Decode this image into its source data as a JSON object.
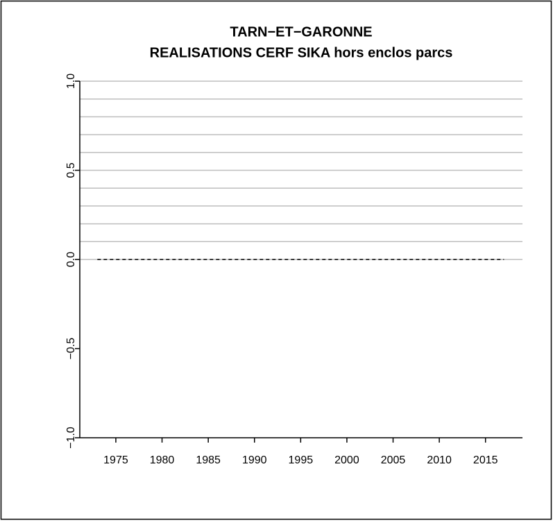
{
  "chart_data": {
    "type": "line",
    "title": "TARN−ET−GARONNE",
    "subtitle": "REALISATIONS CERF SIKA hors enclos parcs",
    "x": [
      1973,
      1974,
      1975,
      1976,
      1977,
      1978,
      1979,
      1980,
      1981,
      1982,
      1983,
      1984,
      1985,
      1986,
      1987,
      1988,
      1989,
      1990,
      1991,
      1992,
      1993,
      1994,
      1995,
      1996,
      1997,
      1998,
      1999,
      2000,
      2001,
      2002,
      2003,
      2004,
      2005,
      2006,
      2007,
      2008,
      2009,
      2010,
      2011,
      2012,
      2013,
      2014,
      2015,
      2016,
      2017
    ],
    "series": [
      {
        "color": "#000000",
        "dashed": true,
        "values": [
          0,
          0,
          0,
          0,
          0,
          0,
          0,
          0,
          0,
          0,
          0,
          0,
          0,
          0,
          0,
          0,
          0,
          0,
          0,
          0,
          0,
          0,
          0,
          0,
          0,
          0,
          0,
          0,
          0,
          0,
          0,
          0,
          0,
          0,
          0,
          0,
          0,
          0,
          0,
          0,
          0,
          0,
          0,
          0,
          0
        ]
      }
    ],
    "xlim": [
      1971.1,
      2019
    ],
    "xticks": [
      1975,
      1980,
      1985,
      1990,
      1995,
      2000,
      2005,
      2010,
      2015
    ],
    "ylim": [
      -1,
      1
    ],
    "yticks": [
      {
        "value": -1,
        "label": "−1.0"
      },
      {
        "value": -0.5,
        "label": "−0.5"
      },
      {
        "value": 0,
        "label": "0.0"
      },
      {
        "value": 0.5,
        "label": "0.5"
      },
      {
        "value": 1,
        "label": "1.0"
      }
    ],
    "hlines": [
      0,
      0.1,
      0.2,
      0.3,
      0.4,
      0.5,
      0.6,
      0.7,
      0.8,
      0.9,
      1.0
    ],
    "hline_color": "#bebebe"
  }
}
